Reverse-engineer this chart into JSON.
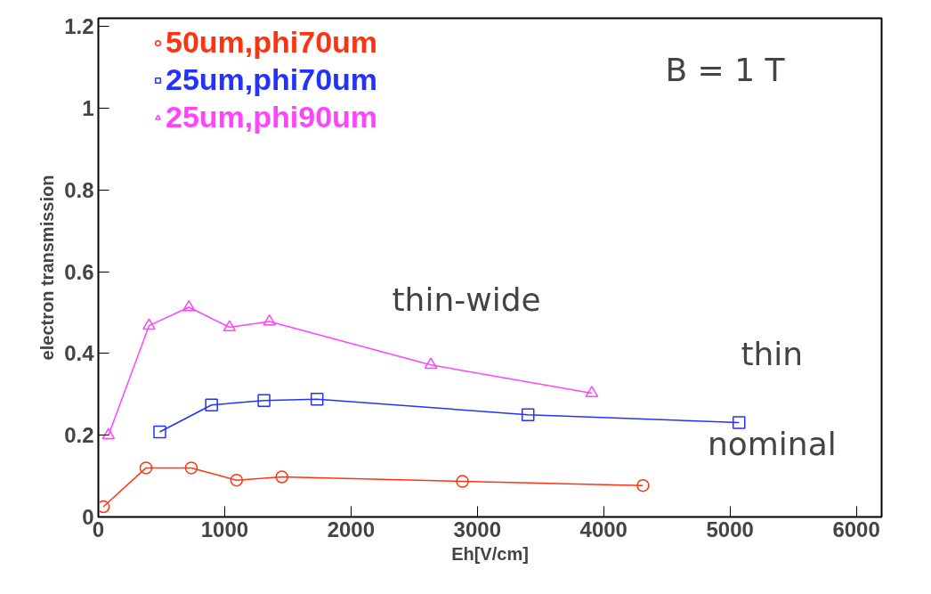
{
  "chart_data": {
    "type": "line",
    "xlabel": "Eh[V/cm]",
    "ylabel": "electron transmission",
    "xlim": [
      0,
      6200
    ],
    "ylim": [
      0,
      1.22
    ],
    "xticks": [
      0,
      1000,
      2000,
      3000,
      4000,
      5000,
      6000
    ],
    "yticks": [
      0,
      0.2,
      0.4,
      0.6,
      0.8,
      1,
      1.2
    ],
    "grid": false,
    "legend": "top left",
    "line_style": "solid",
    "series": [
      {
        "name": "50um,phi70um",
        "color": "#ff3311",
        "marker": "circle",
        "x": [
          40,
          377,
          736,
          1094,
          1453,
          2882,
          4311
        ],
        "values": [
          0.025,
          0.12,
          0.12,
          0.09,
          0.098,
          0.087,
          0.077
        ]
      },
      {
        "name": "25um,phi70um",
        "color": "#2233ff",
        "marker": "square",
        "x": [
          486,
          896,
          1311,
          1731,
          3401,
          5071
        ],
        "values": [
          0.208,
          0.274,
          0.285,
          0.288,
          0.25,
          0.231
        ]
      },
      {
        "name": "25um,phi90um",
        "color": "#ff44ff",
        "marker": "triangle",
        "x": [
          80,
          401,
          717,
          1038,
          1354,
          2632,
          3906
        ],
        "values": [
          0.2,
          0.468,
          0.513,
          0.464,
          0.478,
          0.372,
          0.303
        ]
      }
    ],
    "annotations": [
      "B = 1 T",
      "thin-wide",
      "thin",
      "nominal"
    ]
  }
}
